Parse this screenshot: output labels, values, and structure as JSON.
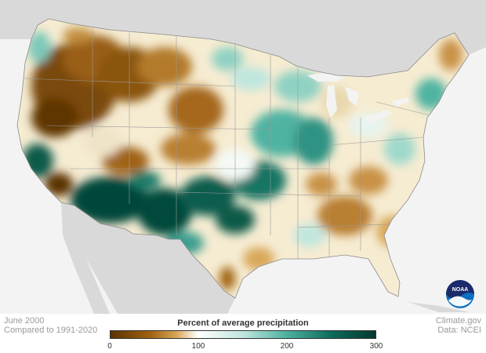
{
  "footer": {
    "date": "June 2000",
    "baseline": "Compared to 1991-2020",
    "source_site": "Climate.gov",
    "data_credit": "Data: NCEI"
  },
  "legend": {
    "title": "Percent of average precipitation",
    "ticks": [
      "0",
      "100",
      "200",
      "300"
    ],
    "colors": [
      "#5a3200",
      "#a0620f",
      "#d9a75a",
      "#f6ecd2",
      "#ffffff",
      "#bfe6de",
      "#4fb3a2",
      "#0e6c5c",
      "#02392f"
    ]
  },
  "logo": {
    "text": "NOAA"
  },
  "colors": {
    "water": "#e6e6e6",
    "land_outside": "#d8d8d8",
    "state_border": "#9a9a9a"
  }
}
